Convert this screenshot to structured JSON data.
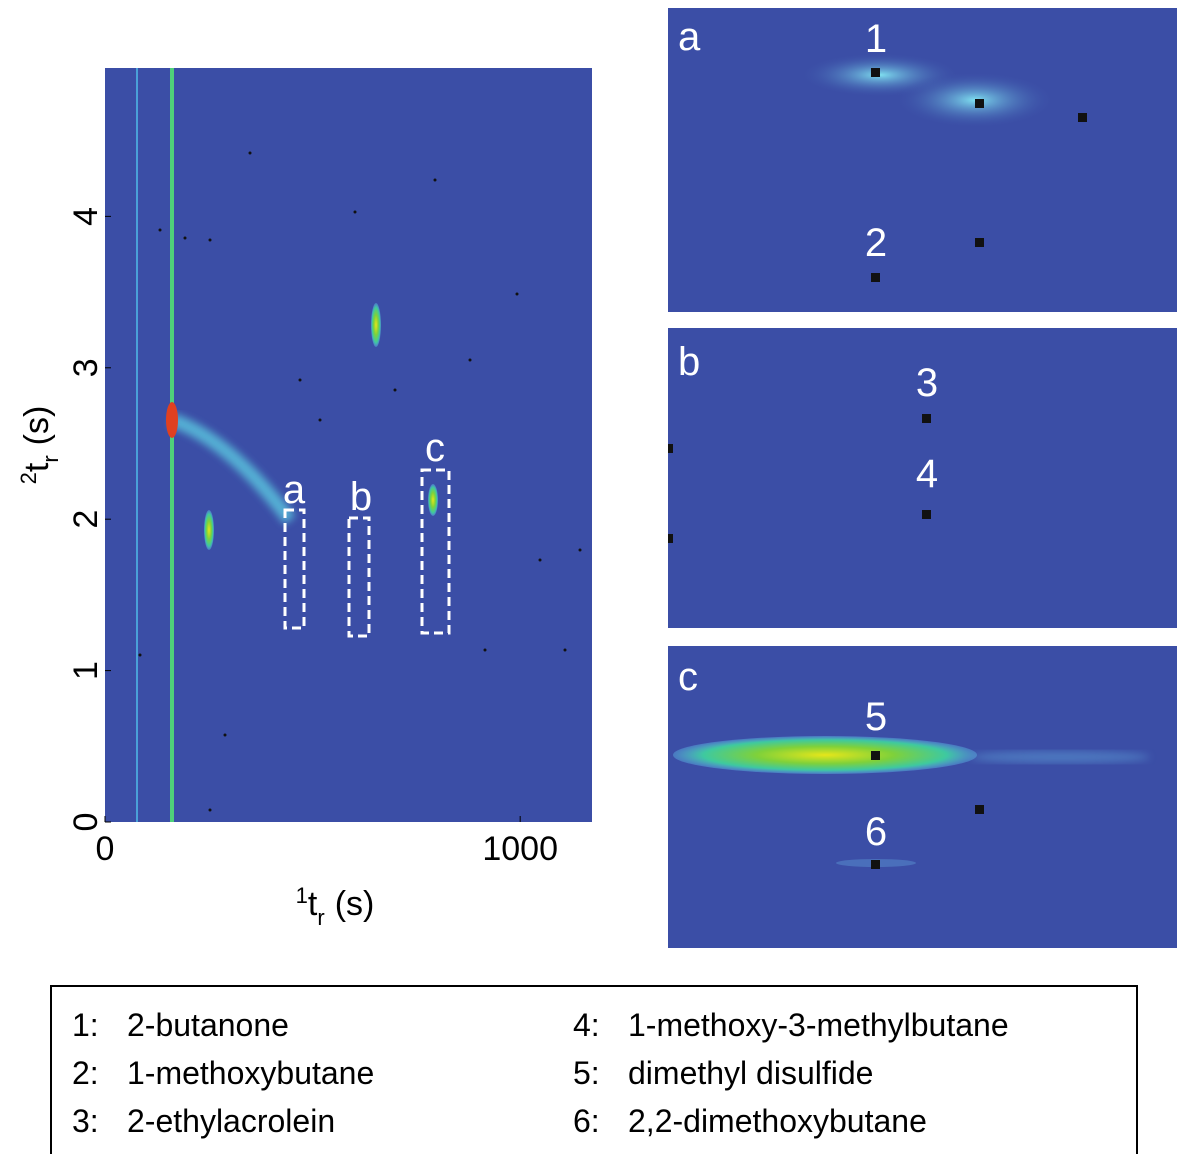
{
  "chart_data": {
    "type": "image",
    "xlabel": {
      "sup": "1",
      "base": "t",
      "sub": "r",
      "unit": "(s)"
    },
    "ylabel": {
      "sup": "2",
      "base": "t",
      "sub": "r",
      "unit": "(s)"
    },
    "xlim": [
      0,
      1173
    ],
    "xticks": [
      0,
      1000
    ],
    "ylim": [
      0,
      4.98
    ],
    "yticks": [
      0,
      1,
      2,
      3,
      4
    ],
    "regions": [
      "a",
      "b",
      "c"
    ],
    "panels": [
      {
        "label": "a",
        "peaks": [
          "1",
          "2"
        ]
      },
      {
        "label": "b",
        "peaks": [
          "3",
          "4"
        ]
      },
      {
        "label": "c",
        "peaks": [
          "5",
          "6"
        ]
      }
    ],
    "legend": [
      {
        "key": "1:",
        "name": "2-butanone"
      },
      {
        "key": "2:",
        "name": "1-methoxybutane"
      },
      {
        "key": "3:",
        "name": "2-ethylacrolein"
      },
      {
        "key": "4:",
        "name": "1-methoxy-3-methylbutane"
      },
      {
        "key": "5:",
        "name": "dimethyl disulfide"
      },
      {
        "key": "6:",
        "name": "2,2-dimethoxybutane"
      }
    ]
  }
}
